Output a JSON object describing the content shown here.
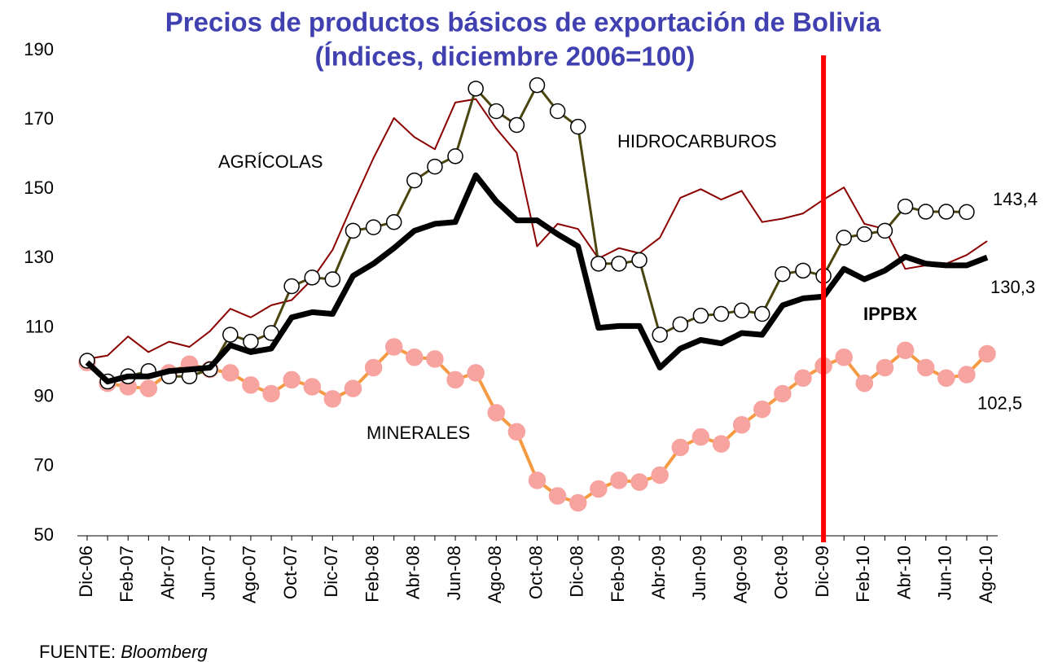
{
  "chart_data": {
    "type": "line",
    "title": "Precios de productos básicos de exportación de Bolivia",
    "subtitle": "(Índices, diciembre 2006=100)",
    "categories": [
      "Dic-06",
      null,
      "Feb-07",
      null,
      "Abr-07",
      null,
      "Jun-07",
      null,
      "Ago-07",
      null,
      "Oct-07",
      null,
      "Dic-07",
      null,
      "Feb-08",
      null,
      "Abr-08",
      null,
      "Jun-08",
      null,
      "Ago-08",
      null,
      "Oct-08",
      null,
      "Dic-08",
      null,
      "Feb-09",
      null,
      "Abr-09",
      null,
      "Jun-09",
      null,
      "Ago-09",
      null,
      "Oct-09",
      null,
      "Dic-09",
      null,
      "Feb-10",
      null,
      "Abr-10",
      null,
      "Jun-10",
      null,
      "Ago-10"
    ],
    "series": [
      {
        "name": "AGRÍCOLAS",
        "color": "#8b0000",
        "marker": "none",
        "values": [
          101,
          102,
          107.5,
          103,
          106,
          104.5,
          109,
          115.5,
          113,
          116.5,
          118,
          124,
          132.5,
          146,
          159,
          170.5,
          165,
          161.5,
          175,
          176,
          167.5,
          160.5,
          133.5,
          140,
          138.5,
          130,
          133,
          131.5,
          136,
          147.5,
          150,
          147,
          149.5,
          140.5,
          141.5,
          143,
          147,
          150.5,
          140,
          138.5,
          127,
          128,
          128.5,
          131,
          135
        ]
      },
      {
        "name": "MINERALES",
        "color": "#f59a42",
        "marker": "circle",
        "marker_color": "#f7a3a0",
        "values": [
          100,
          94,
          93,
          92.5,
          97,
          99.5,
          98,
          97,
          93.5,
          91,
          95,
          93,
          89.5,
          92.5,
          98.5,
          104.5,
          101.5,
          101,
          95,
          97,
          85.5,
          80,
          66,
          61.5,
          59.5,
          63.5,
          66,
          65.5,
          67.5,
          75.5,
          78.5,
          76.5,
          82,
          86.5,
          91,
          95.5,
          99,
          101.5,
          94,
          98.5,
          103.5,
          98.5,
          95.5,
          96.5,
          102.5
        ],
        "value_labels": [
          null,
          null,
          null,
          null,
          null,
          null,
          null,
          null,
          null,
          null,
          null,
          null,
          null,
          null,
          null,
          null,
          null,
          null,
          null,
          null,
          null,
          null,
          null,
          null,
          null,
          null,
          null,
          null,
          null,
          null,
          null,
          null,
          null,
          null,
          null,
          null,
          null,
          null,
          null,
          null,
          null,
          null,
          null,
          null,
          "102,5"
        ]
      },
      {
        "name": "HIDROCARBUROS",
        "color": "#4b4510",
        "marker": "circle",
        "marker_color": "#ffffff",
        "values": [
          100.5,
          94.5,
          96,
          97.5,
          96,
          96,
          98,
          108,
          106,
          108.5,
          122,
          124.5,
          124,
          138,
          139,
          140.5,
          152.5,
          156.5,
          159.5,
          179,
          172.5,
          168.5,
          180,
          172.5,
          168,
          128.5,
          128.5,
          129.5,
          108,
          111,
          113.5,
          114,
          115,
          114,
          125.5,
          126.5,
          125,
          136,
          137,
          138,
          145,
          143.5,
          143.5,
          143.4,
          null
        ],
        "value_labels": [
          null,
          null,
          null,
          null,
          null,
          null,
          null,
          null,
          null,
          null,
          null,
          null,
          null,
          null,
          null,
          null,
          null,
          null,
          null,
          null,
          null,
          null,
          null,
          null,
          null,
          null,
          null,
          null,
          null,
          null,
          null,
          null,
          null,
          null,
          null,
          null,
          null,
          null,
          null,
          null,
          null,
          null,
          null,
          "143,4",
          null
        ]
      },
      {
        "name": "IPPBX",
        "color": "#000000",
        "marker": "none",
        "values": [
          100,
          94.5,
          96,
          96,
          97.5,
          98,
          98.5,
          105,
          103,
          104,
          113,
          114.5,
          114,
          125,
          128.5,
          133,
          138,
          140,
          140.5,
          154,
          146.5,
          141,
          141,
          137,
          133.5,
          110,
          110.5,
          110.5,
          98.5,
          104,
          106.5,
          105.5,
          108.5,
          108,
          116.5,
          118.5,
          119,
          127,
          124,
          126.5,
          130.5,
          128.5,
          128,
          128,
          130.3
        ],
        "value_labels": [
          null,
          null,
          null,
          null,
          null,
          null,
          null,
          null,
          null,
          null,
          null,
          null,
          null,
          null,
          null,
          null,
          null,
          null,
          null,
          null,
          null,
          null,
          null,
          null,
          null,
          null,
          null,
          null,
          null,
          null,
          null,
          null,
          null,
          null,
          null,
          null,
          null,
          null,
          null,
          null,
          null,
          null,
          null,
          null,
          "130,3"
        ]
      }
    ],
    "ylim": [
      50,
      190
    ],
    "yticks": [
      50,
      70,
      90,
      110,
      130,
      150,
      170,
      190
    ],
    "grid": false,
    "reference_line": {
      "at": "Dic-09",
      "color": "#ff0000"
    },
    "source_prefix": "FUENTE: ",
    "source": "Bloomberg"
  }
}
